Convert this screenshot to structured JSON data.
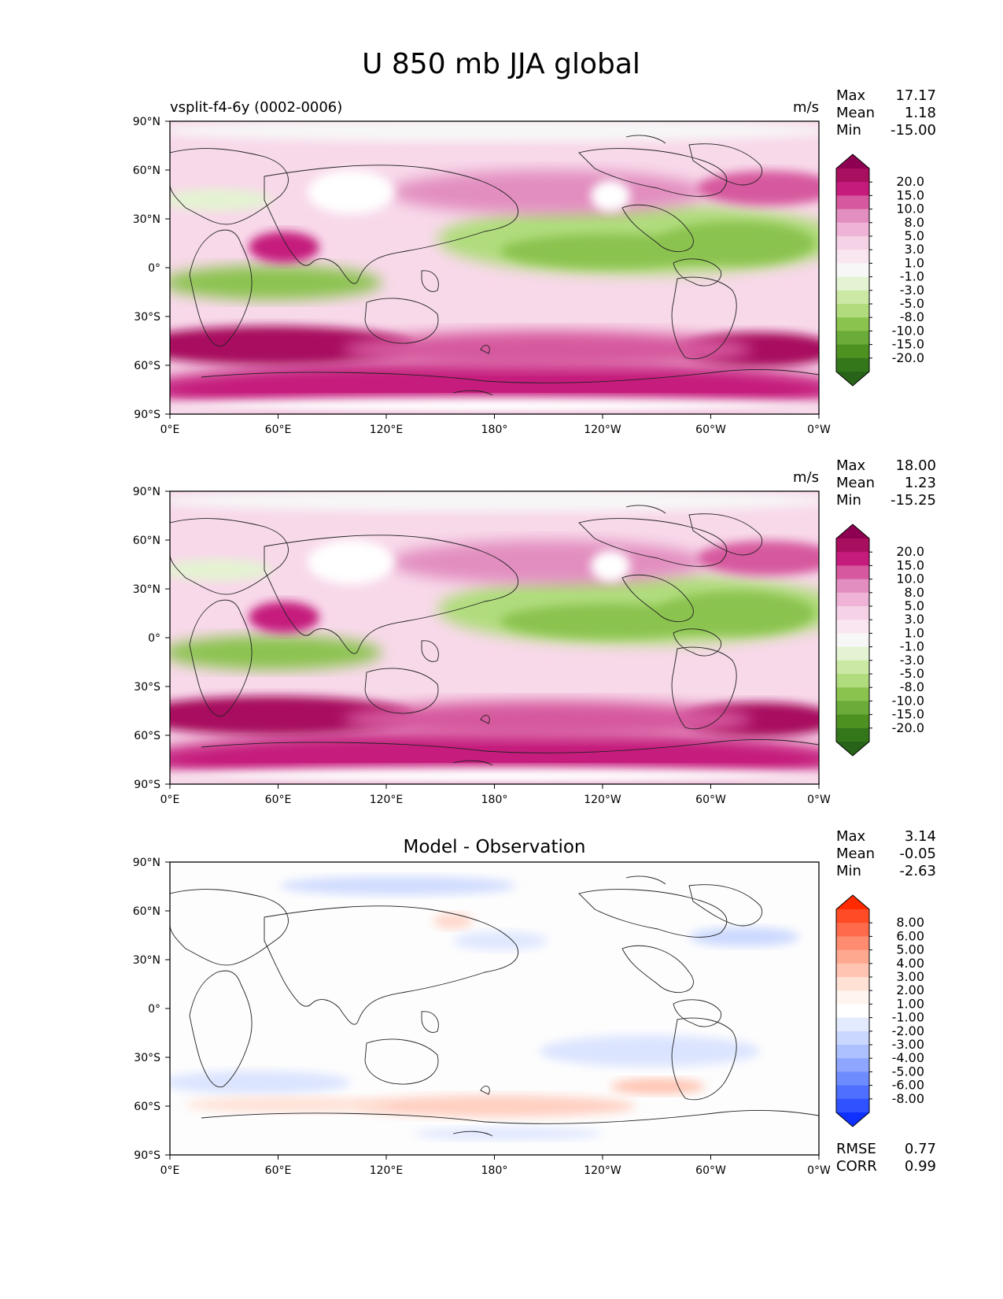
{
  "figure": {
    "title": "U 850 mb JJA global"
  },
  "chart_data": [
    {
      "type": "heatmap",
      "name": "test",
      "title": "",
      "left_title": "vsplit-f4-6y (0002-0006)",
      "units": "m/s",
      "x_ticks": [
        "0°E",
        "60°E",
        "120°E",
        "180°",
        "120°W",
        "60°W",
        "0°W"
      ],
      "y_ticks": [
        "90°N",
        "60°N",
        "30°N",
        "0°",
        "30°S",
        "60°S",
        "90°S"
      ],
      "xlim": [
        0,
        360
      ],
      "ylim": [
        -90,
        90
      ],
      "stats": [
        {
          "label": "Max",
          "value": "17.17"
        },
        {
          "label": "Mean",
          "value": "1.18"
        },
        {
          "label": "Min",
          "value": "-15.00"
        }
      ],
      "colorbar": {
        "labels": [
          "20.0",
          "15.0",
          "10.0",
          "8.0",
          "5.0",
          "3.0",
          "1.0",
          "-1.0",
          "-3.0",
          "-5.0",
          "-8.0",
          "-10.0",
          "-15.0",
          "-20.0"
        ],
        "colors": [
          "#8e0152",
          "#a8105f",
          "#c51b7d",
          "#d6589e",
          "#e28ec0",
          "#eeb3d7",
          "#f5d2e6",
          "#fae6f0",
          "#f7f7f7",
          "#e4f3d2",
          "#cbe8a4",
          "#b0dc7d",
          "#8bc34f",
          "#6aab3a",
          "#4d9221",
          "#33771a",
          "#276419"
        ],
        "extend": "both"
      }
    },
    {
      "type": "heatmap",
      "name": "reference",
      "title": "",
      "left_title": "",
      "units": "m/s",
      "x_ticks": [
        "0°E",
        "60°E",
        "120°E",
        "180°",
        "120°W",
        "60°W",
        "0°W"
      ],
      "y_ticks": [
        "90°N",
        "60°N",
        "30°N",
        "0°",
        "30°S",
        "60°S",
        "90°S"
      ],
      "xlim": [
        0,
        360
      ],
      "ylim": [
        -90,
        90
      ],
      "stats": [
        {
          "label": "Max",
          "value": "18.00"
        },
        {
          "label": "Mean",
          "value": "1.23"
        },
        {
          "label": "Min",
          "value": "-15.25"
        }
      ],
      "colorbar": {
        "labels": [
          "20.0",
          "15.0",
          "10.0",
          "8.0",
          "5.0",
          "3.0",
          "1.0",
          "-1.0",
          "-3.0",
          "-5.0",
          "-8.0",
          "-10.0",
          "-15.0",
          "-20.0"
        ],
        "colors": [
          "#8e0152",
          "#a8105f",
          "#c51b7d",
          "#d6589e",
          "#e28ec0",
          "#eeb3d7",
          "#f5d2e6",
          "#fae6f0",
          "#f7f7f7",
          "#e4f3d2",
          "#cbe8a4",
          "#b0dc7d",
          "#8bc34f",
          "#6aab3a",
          "#4d9221",
          "#33771a",
          "#276419"
        ],
        "extend": "both"
      }
    },
    {
      "type": "heatmap",
      "name": "difference",
      "title": "Model - Observation",
      "left_title": "",
      "units": "",
      "x_ticks": [
        "0°E",
        "60°E",
        "120°E",
        "180°",
        "120°W",
        "60°W",
        "0°W"
      ],
      "y_ticks": [
        "90°N",
        "60°N",
        "30°N",
        "0°",
        "30°S",
        "60°S",
        "90°S"
      ],
      "xlim": [
        0,
        360
      ],
      "ylim": [
        -90,
        90
      ],
      "stats": [
        {
          "label": "Max",
          "value": "3.14"
        },
        {
          "label": "Mean",
          "value": "-0.05"
        },
        {
          "label": "Min",
          "value": "-2.63"
        }
      ],
      "extra_stats": [
        {
          "label": "RMSE",
          "value": "0.77"
        },
        {
          "label": "CORR",
          "value": "0.99"
        }
      ],
      "colorbar": {
        "labels": [
          "8.00",
          "6.00",
          "5.00",
          "4.00",
          "3.00",
          "2.00",
          "1.00",
          "-1.00",
          "-2.00",
          "-3.00",
          "-4.00",
          "-5.00",
          "-6.00",
          "-8.00"
        ],
        "colors": [
          "#ff2a00",
          "#ff4c26",
          "#ff6a4a",
          "#ff8b70",
          "#ffa890",
          "#ffc4b2",
          "#ffe1d6",
          "#fff4ef",
          "#ffffff",
          "#e4ebff",
          "#cad7ff",
          "#adc0ff",
          "#8ea6ff",
          "#6f8cff",
          "#4e6fff",
          "#2e52ff",
          "#1030ff"
        ],
        "extend": "both"
      }
    }
  ]
}
